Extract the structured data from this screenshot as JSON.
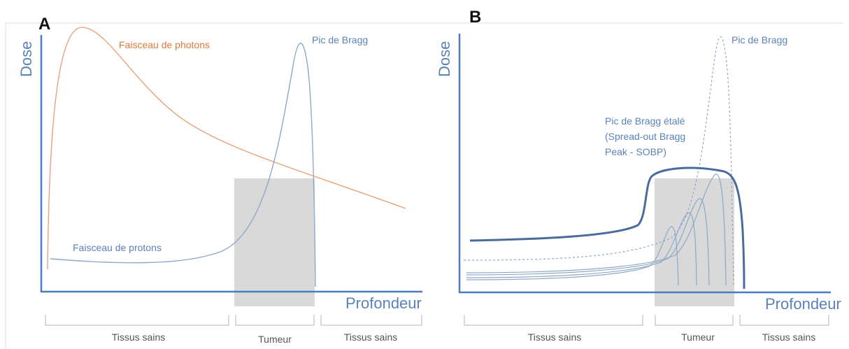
{
  "colors": {
    "axis": "#4a7cc1",
    "photon": "#e8a27a",
    "photon_label": "#e07a3a",
    "proton": "#8fa8c8",
    "proton_label": "#5a82b8",
    "sobp": "#4a6c9c",
    "tumor_box": "#d9d9d9",
    "bracket": "#b5b5b5",
    "frame": "#dddddd"
  },
  "panel_a": {
    "letter": "A",
    "y_axis_label": "Dose",
    "x_axis_label": "Profondeur",
    "photon_label": "Faisceau de photons",
    "bragg_label": "Pic de Bragg",
    "proton_label": "Faisceau de protons",
    "regions": [
      "Tissus sains",
      "Tumeur",
      "Tissus sains"
    ]
  },
  "panel_b": {
    "letter": "B",
    "y_axis_label": "Dose",
    "x_axis_label": "Profondeur",
    "bragg_label": "Pic de Bragg",
    "sobp_label_lines": [
      "Pic de Bragg étalé",
      "(Spread-out Bragg",
      "Peak - SOBP)"
    ],
    "regions": [
      "Tissus sains",
      "Tumeur",
      "Tissus sains"
    ]
  },
  "chart_data": [
    {
      "type": "line",
      "title": "",
      "xlabel": "Profondeur",
      "ylabel": "Dose",
      "series": [
        {
          "name": "Faisceau de photons"
        },
        {
          "name": "Faisceau de protons"
        }
      ],
      "regions": [
        "Tissus sains",
        "Tumeur",
        "Tissus sains"
      ],
      "annotations": [
        "Pic de Bragg"
      ]
    },
    {
      "type": "line",
      "title": "",
      "xlabel": "Profondeur",
      "ylabel": "Dose",
      "series": [
        {
          "name": "Pic de Bragg étalé (Spread-out Bragg Peak - SOBP)"
        },
        {
          "name": "Pic de Bragg"
        }
      ],
      "regions": [
        "Tissus sains",
        "Tumeur",
        "Tissus sains"
      ]
    }
  ]
}
